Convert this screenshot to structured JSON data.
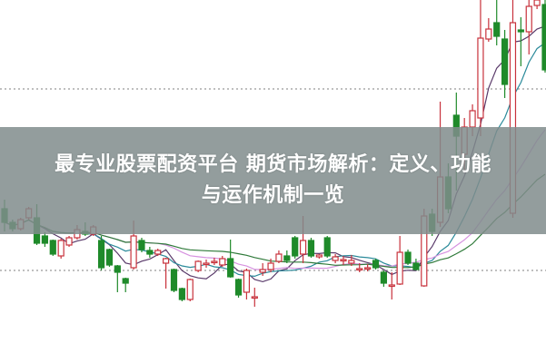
{
  "banner": {
    "line1": "最专业股票配资平台 期货市场解析：定义、功能",
    "line2": "与运作机制一览"
  },
  "colors": {
    "up": "#c8323c",
    "down": "#1f8a2a",
    "ma5": "#5a3a6a",
    "ma10": "#2a8a9a",
    "ma20": "#d692e0",
    "ma30": "#2f7a3a",
    "reference": "#999999",
    "banner": "#808c8c"
  },
  "chart_data": {
    "type": "candlestick",
    "ylim": [
      0,
      40
    ],
    "grid": false,
    "up_style": "hollow red",
    "down_style": "filled green",
    "moving_averages": [
      5,
      10,
      20,
      30
    ],
    "reference_lines": [
      30.2,
      10.2
    ],
    "candles_ohlc": [
      [
        17.0,
        15.5,
        18.0,
        14.5
      ],
      [
        15.5,
        14.8,
        15.8,
        14.5
      ],
      [
        14.8,
        15.8,
        16.0,
        14.6
      ],
      [
        16.0,
        17.0,
        17.2,
        15.8
      ],
      [
        16.0,
        13.2,
        17.5,
        13.0
      ],
      [
        14.0,
        13.2,
        14.4,
        12.8
      ],
      [
        13.5,
        12.0,
        13.6,
        11.8
      ],
      [
        11.8,
        13.5,
        13.7,
        11.5
      ],
      [
        13.0,
        13.8,
        14.0,
        12.8
      ],
      [
        13.8,
        14.7,
        15.2,
        13.6
      ],
      [
        14.5,
        14.2,
        15.5,
        14.0
      ],
      [
        14.2,
        15.0,
        15.2,
        14.0
      ],
      [
        13.5,
        10.5,
        14.0,
        10.2
      ],
      [
        12.5,
        10.8,
        12.6,
        10.6
      ],
      [
        10.7,
        10.0,
        10.8,
        7.8
      ],
      [
        9.3,
        8.8,
        9.4,
        7.8
      ],
      [
        10.5,
        14.0,
        15.7,
        10.3
      ],
      [
        13.5,
        12.5,
        13.8,
        12.2
      ],
      [
        12.4,
        12.0,
        12.8,
        11.6
      ],
      [
        12.0,
        12.4,
        12.6,
        11.8
      ],
      [
        11.0,
        11.5,
        11.6,
        8.2
      ],
      [
        10.3,
        8.0,
        10.4,
        7.8
      ],
      [
        8.2,
        7.0,
        8.3,
        6.8
      ],
      [
        7.0,
        9.2,
        9.3,
        6.8
      ],
      [
        10.2,
        11.2,
        11.3,
        10.0
      ],
      [
        11.0,
        11.0,
        11.4,
        10.5
      ],
      [
        11.2,
        11.2,
        11.6,
        10.8
      ],
      [
        10.8,
        11.5,
        11.8,
        10.6
      ],
      [
        11.5,
        9.5,
        13.6,
        9.4
      ],
      [
        9.2,
        7.5,
        9.3,
        7.2
      ],
      [
        7.8,
        10.2,
        10.4,
        7.0
      ],
      [
        7.3,
        7.3,
        8.3,
        6.2
      ],
      [
        10.0,
        10.3,
        11.0,
        9.6
      ],
      [
        10.3,
        11.0,
        11.5,
        10.0
      ],
      [
        11.2,
        12.0,
        12.4,
        11.0
      ],
      [
        11.8,
        11.3,
        12.4,
        11.0
      ],
      [
        13.8,
        11.8,
        14.0,
        11.5
      ],
      [
        12.0,
        13.5,
        16.2,
        11.0
      ],
      [
        13.5,
        11.8,
        13.8,
        11.6
      ],
      [
        11.7,
        11.9,
        12.0,
        11.5
      ],
      [
        13.8,
        11.8,
        14.0,
        11.6
      ],
      [
        11.3,
        11.7,
        12.0,
        11.0
      ],
      [
        11.3,
        11.4,
        11.8,
        10.8
      ],
      [
        11.0,
        11.3,
        11.9,
        10.7
      ],
      [
        10.3,
        10.4,
        11.0,
        10.0
      ],
      [
        10.5,
        10.5,
        10.9,
        10.1
      ],
      [
        11.3,
        10.5,
        11.5,
        10.3
      ],
      [
        10.0,
        8.8,
        10.2,
        8.4
      ],
      [
        8.5,
        8.6,
        10.0,
        7.0
      ],
      [
        8.7,
        12.2,
        14.0,
        8.6
      ],
      [
        12.2,
        11.0,
        12.5,
        10.8
      ],
      [
        11.0,
        10.3,
        11.5,
        10.2
      ],
      [
        8.5,
        16.2,
        17.0,
        8.4
      ],
      [
        16.4,
        14.5,
        17.0,
        14.0
      ],
      [
        15.5,
        20.5,
        28.8,
        15.0
      ],
      [
        20.5,
        17.0,
        22.0,
        16.5
      ],
      [
        27.3,
        25.0,
        29.8,
        19.0
      ],
      [
        23.0,
        26.0,
        27.0,
        21.0
      ],
      [
        26.0,
        27.8,
        28.5,
        25.0
      ],
      [
        27.0,
        35.8,
        40.0,
        25.0
      ],
      [
        35.7,
        36.8,
        38.0,
        35.4
      ],
      [
        37.5,
        36.0,
        40.0,
        35.0
      ],
      [
        35.7,
        30.7,
        36.7,
        29.2
      ],
      [
        16.5,
        37.5,
        40.0,
        16.0
      ],
      [
        36.7,
        36.5,
        38.1,
        32.7
      ],
      [
        36.5,
        39.3,
        40.0,
        34.0
      ],
      [
        39.4,
        40.0,
        40.0,
        39.0
      ],
      [
        39.5,
        32.3,
        40.0,
        32.0
      ]
    ]
  }
}
